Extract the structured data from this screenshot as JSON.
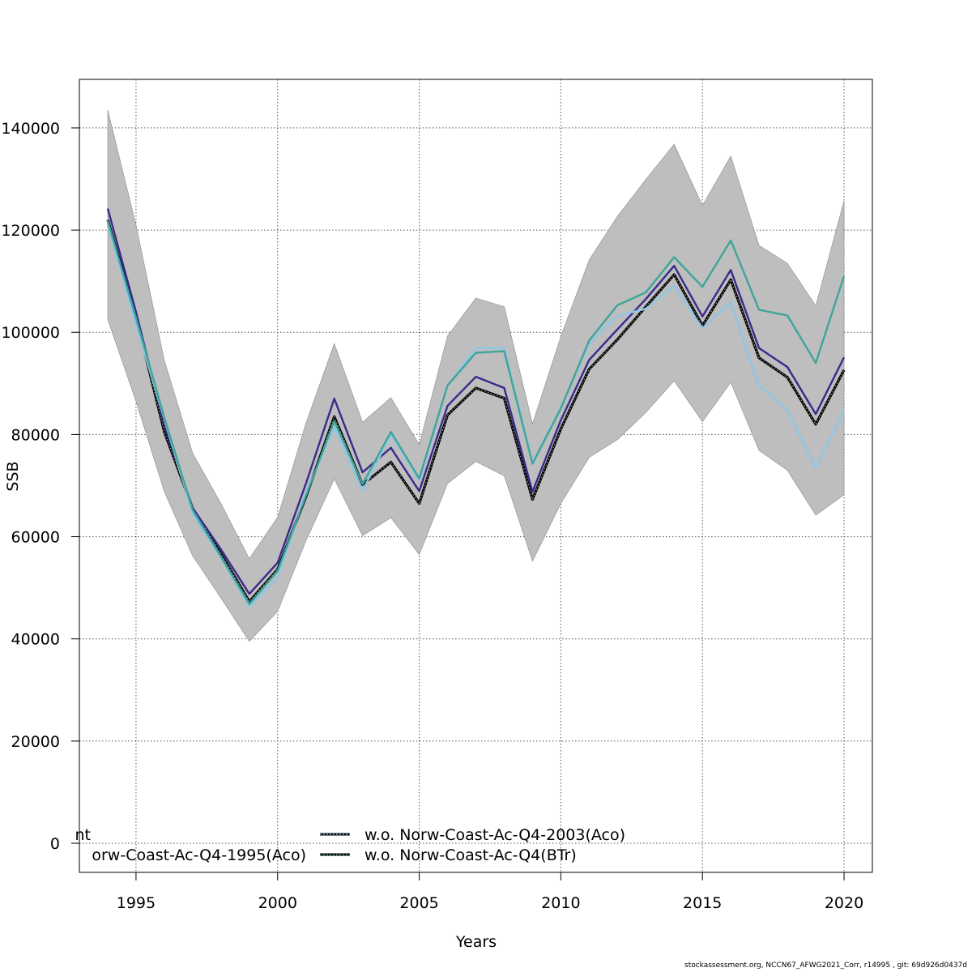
{
  "chart_data": {
    "type": "line",
    "xlabel": "Years",
    "ylabel": "SSB",
    "xlim": [
      1993,
      2021
    ],
    "ylim": [
      -5700,
      149500
    ],
    "xticks": [
      1995,
      2000,
      2005,
      2010,
      2015,
      2020
    ],
    "yticks": [
      0,
      20000,
      40000,
      60000,
      80000,
      100000,
      120000,
      140000
    ],
    "grid": true,
    "x": [
      1994,
      1995,
      1996,
      1997,
      1998,
      1999,
      2000,
      2001,
      2002,
      2003,
      2004,
      2005,
      2006,
      2007,
      2008,
      2009,
      2010,
      2011,
      2012,
      2013,
      2014,
      2015,
      2016,
      2017,
      2018,
      2019,
      2020
    ],
    "band": {
      "upper": [
        143500,
        121000,
        94500,
        76300,
        66500,
        55700,
        63800,
        82200,
        97800,
        82400,
        87200,
        78000,
        99300,
        106700,
        105000,
        82100,
        99200,
        114200,
        122700,
        129900,
        136800,
        124800,
        134500,
        117000,
        113500,
        105200,
        125700
      ],
      "lower": [
        102500,
        86500,
        68800,
        56200,
        48000,
        39500,
        45400,
        59200,
        71300,
        60200,
        63700,
        56500,
        70400,
        74700,
        71900,
        55200,
        66500,
        75500,
        79000,
        84300,
        90500,
        82500,
        90200,
        76900,
        73000,
        64200,
        68200
      ]
    },
    "series": [
      {
        "name": "",
        "color": "#2c2c2c",
        "dashed": true,
        "values": [
          122000,
          103000,
          80500,
          65500,
          56700,
          47300,
          53600,
          67800,
          83500,
          70200,
          74600,
          66500,
          83800,
          89100,
          87100,
          67300,
          81100,
          92800,
          98600,
          105000,
          111300,
          101300,
          110300,
          95000,
          91200,
          82000,
          92600
        ]
      },
      {
        "name": "",
        "color": "#3a2a8c",
        "dashed": false,
        "values": [
          124200,
          104000,
          81800,
          65600,
          57500,
          48800,
          54900,
          70400,
          87000,
          72600,
          77400,
          68900,
          85600,
          91300,
          89100,
          68800,
          82800,
          94600,
          100600,
          106500,
          113000,
          103100,
          112200,
          96900,
          93200,
          84000,
          95100
        ]
      },
      {
        "name": "w.o. Norw-Coast-Ac-Q4-2003(Aco)",
        "color": "#8dc7e6",
        "dashed": false,
        "values": [
          121000,
          101500,
          83000,
          64500,
          55800,
          46300,
          52000,
          68600,
          81500,
          68900,
          80100,
          71000,
          89500,
          96900,
          97000,
          74600,
          85300,
          97800,
          103200,
          104600,
          109100,
          100800,
          105900,
          89600,
          84800,
          73500,
          84800
        ]
      },
      {
        "name": "w.o. Norw-Coast-Ac-Q4(BTr)",
        "color": "#3ea59a",
        "dashed": false,
        "values": [
          121800,
          102800,
          83300,
          65200,
          56100,
          46800,
          53300,
          68000,
          82600,
          70300,
          80500,
          71400,
          89600,
          96000,
          96300,
          74300,
          85100,
          98400,
          105300,
          107800,
          114700,
          108900,
          118000,
          104400,
          103300,
          94000,
          111000
        ]
      }
    ],
    "legend": [
      {
        "label": "nt",
        "color": "#2c2c2c",
        "key": false
      },
      {
        "label": "orw-Coast-Ac-Q4-1995(Aco)",
        "color": "#3a2a8c",
        "key": false
      },
      {
        "label": "w.o. Norw-Coast-Ac-Q4-2003(Aco)",
        "color": "#8dc7e6",
        "key": true
      },
      {
        "label": "w.o. Norw-Coast-Ac-Q4(BTr)",
        "color": "#3ea59a",
        "key": true
      }
    ]
  },
  "footer": "stockassessment.org, NCCN67_AFWG2021_Corr, r14995 , git: 69d926d0437d"
}
